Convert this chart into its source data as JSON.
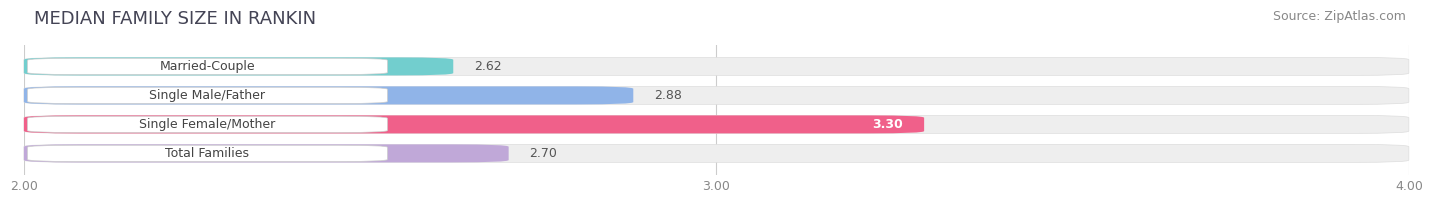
{
  "title": "MEDIAN FAMILY SIZE IN RANKIN",
  "source": "Source: ZipAtlas.com",
  "categories": [
    "Married-Couple",
    "Single Male/Father",
    "Single Female/Mother",
    "Total Families"
  ],
  "values": [
    2.62,
    2.88,
    3.3,
    2.7
  ],
  "bar_colors": [
    "#72cece",
    "#90b4e8",
    "#f0608a",
    "#c0a8d8"
  ],
  "value_label_inside": [
    false,
    false,
    true,
    false
  ],
  "xlim": [
    2.0,
    4.0
  ],
  "xticks": [
    2.0,
    3.0,
    4.0
  ],
  "xticklabels": [
    "2.00",
    "3.00",
    "4.00"
  ],
  "background_color": "#ffffff",
  "bar_bg_color": "#eeeeee",
  "title_fontsize": 13,
  "source_fontsize": 9,
  "label_fontsize": 9,
  "value_fontsize": 9,
  "bar_height": 0.62,
  "bar_spacing": 1.0
}
